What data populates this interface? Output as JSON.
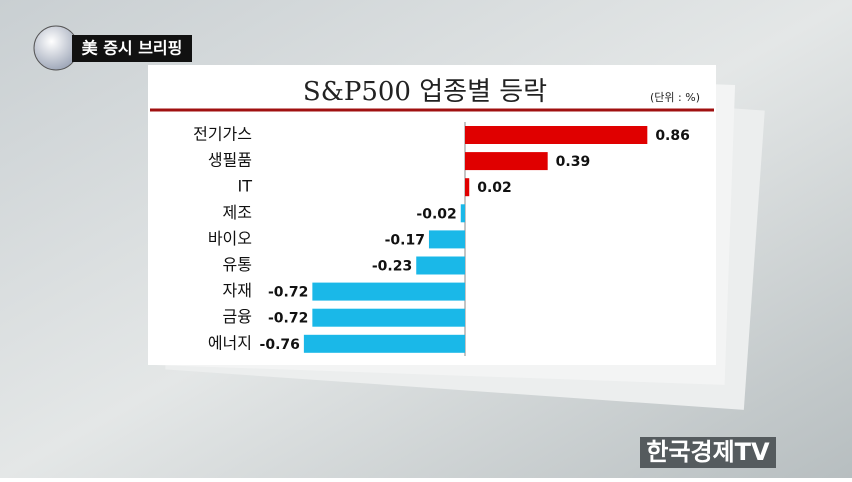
{
  "header": {
    "badge": "美 증시 브리핑"
  },
  "chart_data": {
    "type": "hbar",
    "title": "S&P500 업종별 등락",
    "unit": "(단위 : %)",
    "categories": [
      "전기가스",
      "생필품",
      "IT",
      "제조",
      "바이오",
      "유통",
      "자재",
      "금융",
      "에너지"
    ],
    "values": [
      0.86,
      0.39,
      0.02,
      -0.02,
      -0.17,
      -0.23,
      -0.72,
      -0.72,
      -0.76
    ],
    "color_positive": "#e00000",
    "color_negative": "#1ab8e8"
  },
  "footer": {
    "logo": "한국경제TV"
  }
}
